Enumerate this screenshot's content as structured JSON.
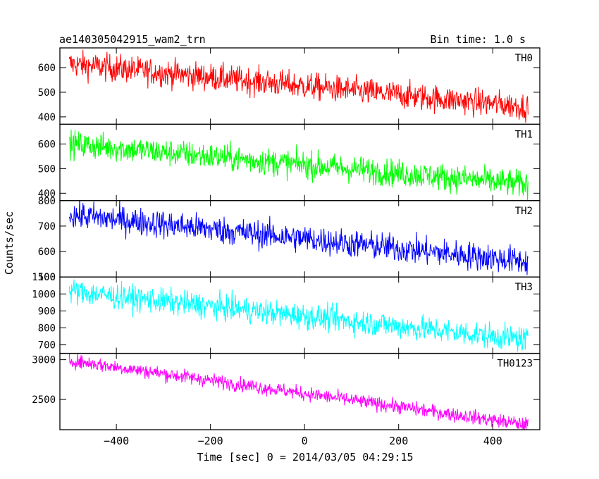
{
  "chart_data": {
    "type": "line",
    "title": "ae140305042915_wam2_trn",
    "subtitle": "Bin time: 1.0 s",
    "xlabel": "Time [sec] 0 = 2014/03/05 04:29:15",
    "ylabel": "Counts/sec",
    "xlim": [
      -520,
      500
    ],
    "x_range": [
      -500,
      475
    ],
    "x_ticks": [
      -400,
      -200,
      0,
      200,
      400
    ],
    "x_tick_labels": [
      "−400",
      "−200",
      "0",
      "200",
      "400"
    ],
    "grid": false,
    "series": [
      {
        "name": "TH0",
        "color": "#ff0000",
        "ylim": [
          370,
          680
        ],
        "y_ticks": [
          400,
          500,
          600
        ],
        "start": 615,
        "end": 440,
        "noise": 28
      },
      {
        "name": "TH1",
        "color": "#00ff00",
        "ylim": [
          370,
          680
        ],
        "y_ticks": [
          400,
          500,
          600
        ],
        "start": 600,
        "end": 435,
        "noise": 28
      },
      {
        "name": "TH2",
        "color": "#0000ff",
        "ylim": [
          500,
          800
        ],
        "y_ticks": [
          500,
          600,
          700,
          800
        ],
        "start": 745,
        "end": 560,
        "noise": 28
      },
      {
        "name": "TH3",
        "color": "#00ffff",
        "ylim": [
          650,
          1100
        ],
        "y_ticks": [
          700,
          800,
          900,
          1000,
          1100
        ],
        "start": 1015,
        "end": 730,
        "noise": 38
      },
      {
        "name": "TH0123",
        "color": "#ff00ff",
        "ylim": [
          2120,
          3080
        ],
        "y_ticks": [
          2500,
          3000
        ],
        "start": 2990,
        "end": 2180,
        "noise": 45
      }
    ]
  }
}
